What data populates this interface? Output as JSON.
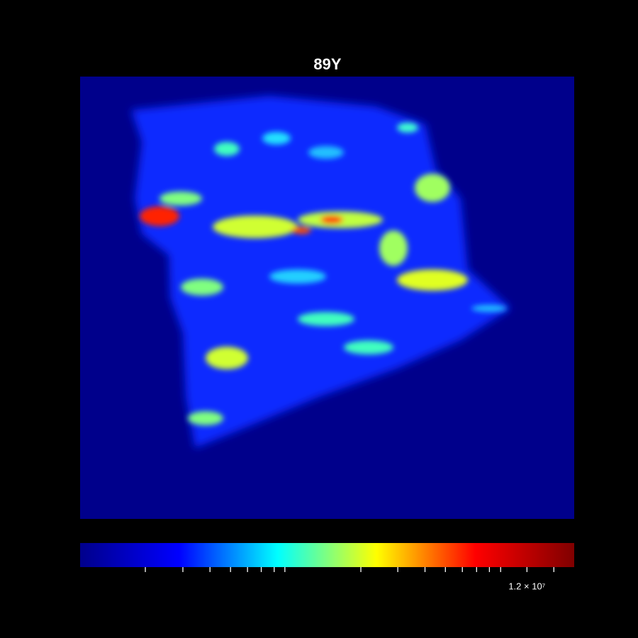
{
  "chart_data": {
    "type": "heatmap",
    "title": "89Y",
    "colorbar": {
      "scale": "log",
      "lim": [
        190000,
        18600000
      ],
      "colors": [
        "#00008b",
        "#0000ff",
        "#00ffff",
        "#ffff00",
        "#ff0000",
        "#800000"
      ],
      "ticks": [
        348000,
        493000,
        634000,
        767000,
        898000,
        1020000,
        1150000,
        1270000,
        2570000,
        3620000,
        4660000,
        5630000,
        6590000,
        7520000,
        8470000,
        9400000,
        {
          "value": 12000000,
          "label": "1.2 × 10⁷"
        },
        15400000
      ]
    }
  }
}
